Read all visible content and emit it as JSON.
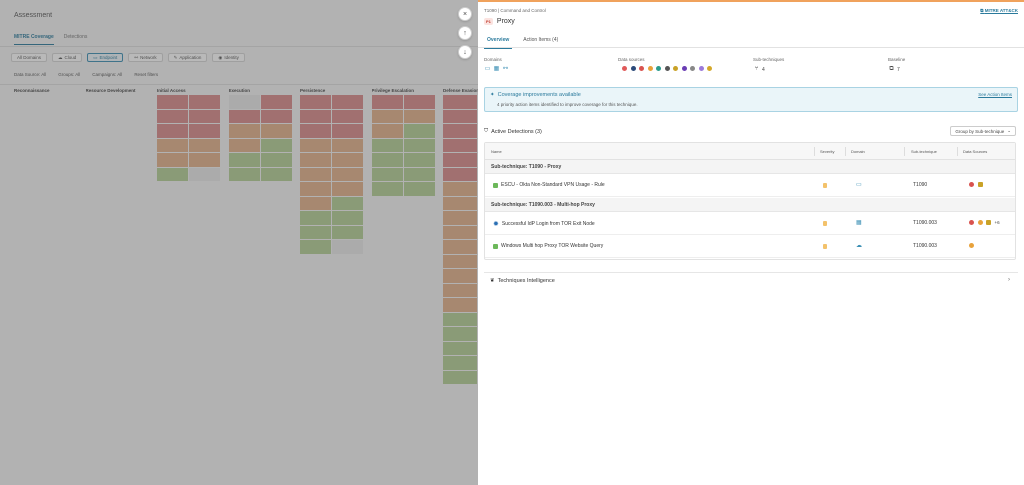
{
  "background": {
    "title": "Assessment",
    "tabs": [
      {
        "label": "MITRE Coverage"
      },
      {
        "label": "Detections"
      }
    ],
    "domain_filters": [
      "All Domains",
      "Cloud",
      "Endpoint",
      "Network",
      "Application",
      "Identity"
    ],
    "sub_filters": [
      "Data Source: All",
      "Groups: All",
      "Campaigns: All",
      "Reset filters"
    ],
    "columns": [
      "Reconnaissance",
      "Resource Development",
      "Initial Access",
      "Execution",
      "Persistence",
      "Privilege Escalation",
      "Defense Evasion"
    ]
  },
  "controls": {
    "close": "×",
    "up": "↑",
    "down": "↓"
  },
  "drawer": {
    "breadcrumb": "T1090 | Command and Control",
    "mitre_link": "MITRE ATT&CK",
    "priority": "P1",
    "title": "Proxy",
    "tabs": {
      "overview": "Overview",
      "action_items": "Action Items (4)"
    },
    "meta": {
      "domains_label": "Domains",
      "data_sources_label": "Data sources",
      "subtech_label": "Sub-techniques",
      "subtech_value": "4",
      "baseline_label": "Baseline",
      "baseline_value": "7"
    },
    "data_source_colors": [
      "#e05a5a",
      "#2b4a7a",
      "#d9534f",
      "#e8a23b",
      "#2a9c8c",
      "#555555",
      "#c9a227",
      "#6a3db4",
      "#888888",
      "#9c7ad9",
      "#d4a82a"
    ],
    "alert": {
      "title": "Coverage improvements available",
      "body": "4 priority action items identified to improve coverage for this technique.",
      "link": "See Action Items"
    },
    "detections": {
      "title": "Active Detections (3)",
      "group_by": "Group by Sub-technique",
      "headers": {
        "name": "Name",
        "severity": "Severity",
        "domain": "Domain",
        "subtech": "Sub-technique",
        "sources": "Data Sources"
      },
      "groups": [
        {
          "label": "Sub-technique: T1090 - Proxy",
          "rows": [
            {
              "name": "ESCU - Okta Non-Standard VPN Usage - Rule",
              "subtech": "T1090"
            }
          ]
        },
        {
          "label": "Sub-technique: T1090.003 - Multi-hop Proxy",
          "rows": [
            {
              "name": "Successful IdP Login from TOR Exit Node",
              "subtech": "T1090.003",
              "extra": "+6"
            },
            {
              "name": "Windows Multi hop Proxy TOR Website Query",
              "subtech": "T1090.003"
            }
          ]
        }
      ]
    },
    "intel_title": "Techniques Intelligence"
  }
}
